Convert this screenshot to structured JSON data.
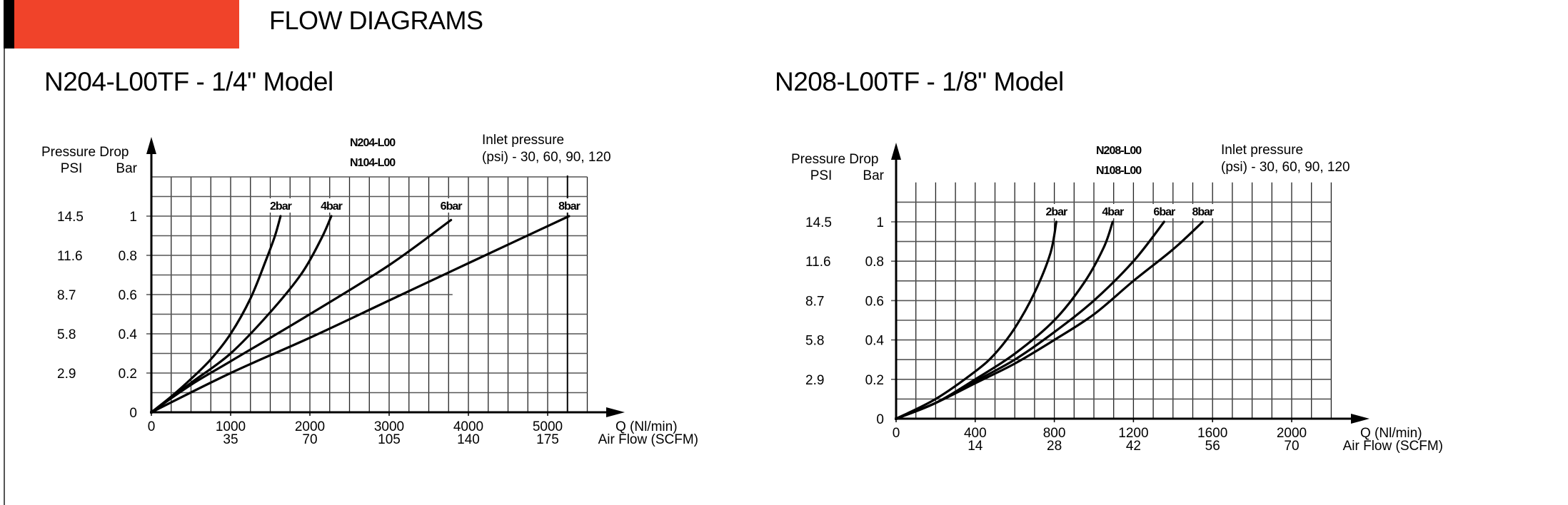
{
  "header": {
    "title": "FLOW DIAGRAMS",
    "accent_color": "#f0432a"
  },
  "chart_data": [
    {
      "type": "line",
      "title": "N204-L00TF - 1/4\" Model",
      "model_labels": [
        "N204-L00",
        "N104-L00"
      ],
      "legend_note": [
        "Inlet pressure",
        "(psi) - 30, 60, 90, 120"
      ],
      "ylabel_top": "Pressure Drop",
      "ylabel_psi": "PSI",
      "ylabel_bar": "Bar",
      "xlabel_primary": "Q (Nl/min)",
      "xlabel_secondary": "Air Flow (SCFM)",
      "xlim": [
        0,
        5500
      ],
      "ylim": [
        0,
        1.2
      ],
      "x_ticks": [
        0,
        1000,
        2000,
        3000,
        4000,
        5000
      ],
      "x_tick_labels": [
        "0",
        "1000",
        "2000",
        "3000",
        "4000",
        "5000"
      ],
      "x_tick_labels_scfm": [
        "",
        "35",
        "70",
        "105",
        "140",
        "175"
      ],
      "y_ticks": [
        0,
        0.2,
        0.4,
        0.6,
        0.8,
        1
      ],
      "y_tick_labels_bar": [
        "0",
        "0.2",
        "0.4",
        "0.6",
        "0.8",
        "1"
      ],
      "y_tick_labels_psi": [
        "",
        "2.9",
        "5.8",
        "8.7",
        "11.6",
        "14.5"
      ],
      "grid": true,
      "series": [
        {
          "name": "2bar",
          "x": [
            0,
            250,
            500,
            750,
            1000,
            1250,
            1450,
            1560,
            1630
          ],
          "y": [
            0,
            0.08,
            0.17,
            0.27,
            0.4,
            0.58,
            0.78,
            0.9,
            1.0
          ]
        },
        {
          "name": "4bar",
          "x": [
            0,
            500,
            1000,
            1500,
            1900,
            2150,
            2270
          ],
          "y": [
            0,
            0.15,
            0.3,
            0.51,
            0.71,
            0.89,
            1.0
          ]
        },
        {
          "name": "6bar",
          "x": [
            0,
            500,
            1000,
            2000,
            3000,
            3780
          ],
          "y": [
            0,
            0.14,
            0.26,
            0.5,
            0.75,
            0.98
          ]
        },
        {
          "name": "8bar",
          "x": [
            0,
            1000,
            2000,
            3000,
            4000,
            5270
          ],
          "y": [
            0,
            0.2,
            0.38,
            0.57,
            0.76,
            1.0
          ]
        }
      ]
    },
    {
      "type": "line",
      "title": "N208-L00TF - 1/8\" Model",
      "model_labels": [
        "N208-L00",
        "N108-L00"
      ],
      "legend_note": [
        "Inlet pressure",
        "(psi) - 30, 60, 90, 120"
      ],
      "ylabel_top": "Pressure Drop",
      "ylabel_psi": "PSI",
      "ylabel_bar": "Bar",
      "xlabel_primary": "Q (Nl/min)",
      "xlabel_secondary": "Air Flow (SCFM)",
      "xlim": [
        0,
        2200
      ],
      "ylim": [
        0,
        1.2
      ],
      "x_ticks": [
        0,
        400,
        800,
        1200,
        1600,
        2000
      ],
      "x_tick_labels": [
        "0",
        "400",
        "800",
        "1200",
        "1600",
        "2000"
      ],
      "x_tick_labels_scfm": [
        "",
        "14",
        "28",
        "42",
        "56",
        "70"
      ],
      "y_ticks": [
        0,
        0.2,
        0.4,
        0.6,
        0.8,
        1
      ],
      "y_tick_labels_bar": [
        "0",
        "0.2",
        "0.4",
        "0.6",
        "0.8",
        "1"
      ],
      "y_tick_labels_psi": [
        "",
        "2.9",
        "5.8",
        "8.7",
        "11.6",
        "14.5"
      ],
      "grid": true,
      "series": [
        {
          "name": "2bar",
          "x": [
            0,
            200,
            400,
            500,
            600,
            700,
            780,
            810
          ],
          "y": [
            0,
            0.1,
            0.24,
            0.33,
            0.46,
            0.64,
            0.84,
            1.0
          ]
        },
        {
          "name": "4bar",
          "x": [
            0,
            200,
            400,
            600,
            800,
            950,
            1050,
            1095
          ],
          "y": [
            0,
            0.08,
            0.2,
            0.33,
            0.5,
            0.69,
            0.87,
            1.0
          ]
        },
        {
          "name": "6bar",
          "x": [
            0,
            200,
            400,
            600,
            800,
            1000,
            1200,
            1355
          ],
          "y": [
            0,
            0.08,
            0.19,
            0.3,
            0.44,
            0.6,
            0.8,
            1.0
          ]
        },
        {
          "name": "8bar",
          "x": [
            0,
            200,
            400,
            600,
            800,
            1000,
            1200,
            1400,
            1550
          ],
          "y": [
            0,
            0.08,
            0.18,
            0.28,
            0.4,
            0.53,
            0.7,
            0.86,
            1.0
          ]
        }
      ]
    }
  ]
}
